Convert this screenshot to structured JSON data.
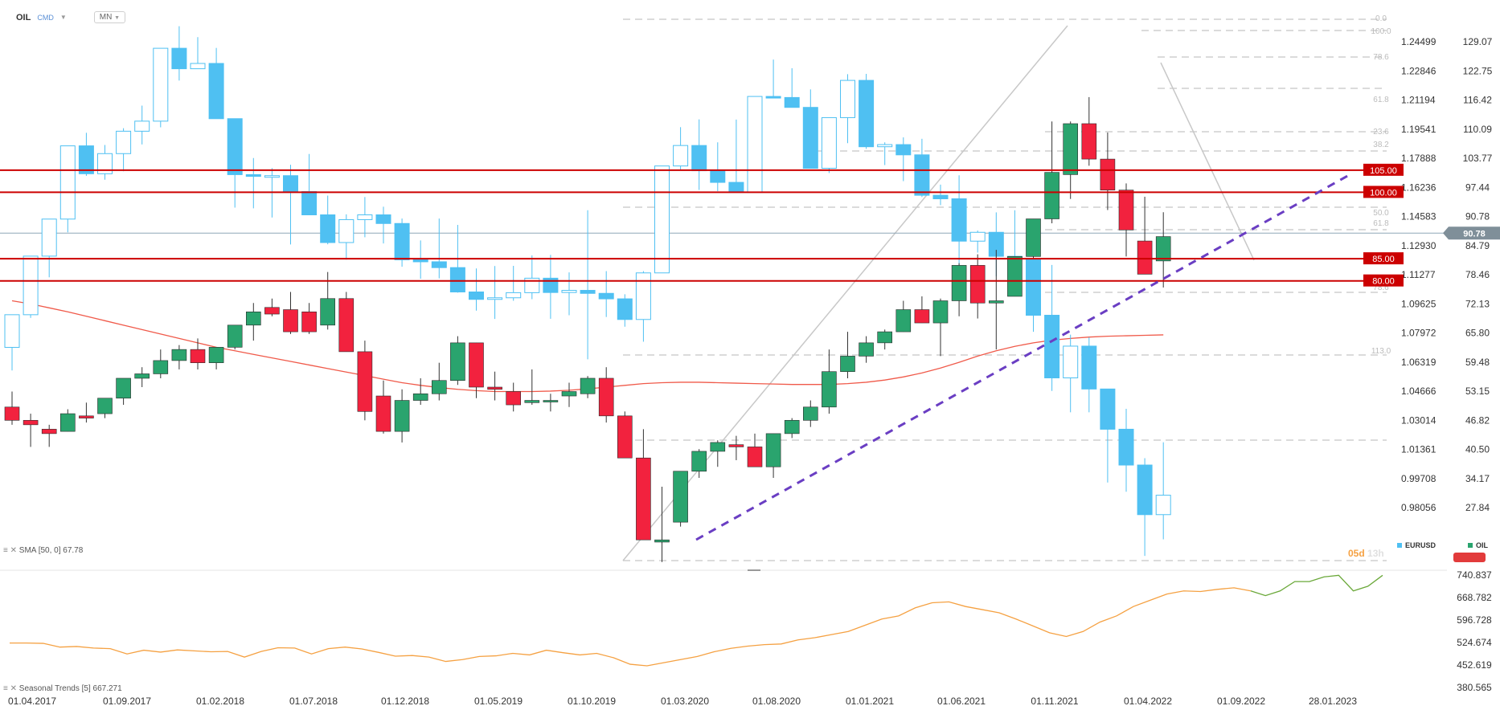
{
  "header": {
    "symbol": "OIL",
    "group": "CMD",
    "timeframe": "MN"
  },
  "indicators": {
    "sma_label": "SMA [50, 0]  67.78",
    "seasonal_label": "Seasonal  Trends [5]  667.271"
  },
  "legend": {
    "eurusd": "EURUSD",
    "oil": "OIL"
  },
  "timer": {
    "left": "05d",
    "right": "13h"
  },
  "colors": {
    "up": "#2aa46e",
    "down": "#f2223e",
    "eur": "#4fc0f2",
    "hline": "#cc0000",
    "sma": "#f05a4a",
    "seasonal_orange": "#f5a142",
    "seasonal_green": "#6aa839",
    "trend": "#6a3ec3"
  },
  "chart_data": {
    "type": "candlestick",
    "x_labels": [
      "01.04.2017",
      "01.09.2017",
      "01.02.2018",
      "01.07.2018",
      "01.12.2018",
      "01.05.2019",
      "01.10.2019",
      "01.03.2020",
      "01.08.2020",
      "01.01.2021",
      "01.06.2021",
      "01.11.2021",
      "01.04.2022",
      "01.09.2022",
      "28.01.2023"
    ],
    "oil_axis": [
      "129.07",
      "122.75",
      "116.42",
      "110.09",
      "103.77",
      "97.44",
      "90.78",
      "84.79",
      "78.46",
      "72.13",
      "65.80",
      "59.48",
      "53.15",
      "46.82",
      "40.50",
      "34.17",
      "27.84"
    ],
    "eurusd_axis": [
      "1.24499",
      "1.22846",
      "1.21194",
      "1.19541",
      "1.17888",
      "1.16236",
      "1.14583",
      "1.12930",
      "1.11277",
      "1.09625",
      "1.07972",
      "1.06319",
      "1.04666",
      "1.03014",
      "1.01361",
      "0.99708",
      "0.98056"
    ],
    "oil_range": [
      17.0,
      134.0
    ],
    "current_price": "90.78",
    "horizontal_levels": [
      {
        "label": "105.00",
        "value": 105.0
      },
      {
        "label": "100.00",
        "value": 100.0
      },
      {
        "label": "85.00",
        "value": 85.0
      },
      {
        "label": "80.00",
        "value": 80.0
      }
    ],
    "fib_labels": [
      "0.0",
      "100.0",
      "78.6",
      "61.8",
      "23.6",
      "38.2",
      "50.0",
      "61.8",
      "78.6",
      "113.0"
    ],
    "oil_ohlc": [
      [
        51.5,
        55.0,
        47.5,
        48.5
      ],
      [
        48.5,
        50.0,
        42.5,
        47.5
      ],
      [
        46.5,
        47.5,
        42.5,
        45.5
      ],
      [
        46.0,
        51.0,
        46.0,
        50.0
      ],
      [
        49.5,
        52.5,
        48.0,
        49.0
      ],
      [
        50.0,
        53.5,
        49.0,
        53.5
      ],
      [
        53.5,
        58.0,
        52.0,
        58.0
      ],
      [
        58.0,
        60.5,
        56.0,
        59.0
      ],
      [
        59.0,
        64.5,
        58.0,
        62.0
      ],
      [
        62.0,
        65.5,
        60.0,
        64.5
      ],
      [
        64.5,
        67.0,
        60.0,
        61.5
      ],
      [
        61.5,
        65.0,
        60.0,
        65.0
      ],
      [
        65.0,
        70.0,
        64.5,
        70.0
      ],
      [
        70.0,
        75.0,
        66.5,
        73.0
      ],
      [
        74.0,
        76.0,
        72.0,
        72.5
      ],
      [
        73.5,
        77.5,
        68.0,
        68.5
      ],
      [
        73.0,
        75.0,
        68.0,
        68.5
      ],
      [
        70.0,
        82.0,
        69.0,
        76.0
      ],
      [
        76.0,
        77.5,
        64.0,
        64.0
      ],
      [
        64.0,
        66.5,
        48.5,
        50.5
      ],
      [
        54.0,
        57.5,
        45.5,
        46.0
      ],
      [
        46.0,
        55.5,
        43.5,
        53.0
      ],
      [
        53.0,
        58.0,
        52.0,
        54.5
      ],
      [
        54.5,
        61.5,
        53.0,
        57.5
      ],
      [
        57.5,
        67.5,
        56.5,
        66.0
      ],
      [
        66.0,
        66.0,
        53.5,
        56.0
      ],
      [
        56.0,
        59.5,
        53.0,
        55.5
      ],
      [
        55.0,
        57.0,
        50.5,
        52.0
      ],
      [
        52.5,
        60.0,
        52.0,
        53.0
      ],
      [
        53.0,
        54.5,
        50.5,
        53.0
      ],
      [
        54.0,
        57.0,
        51.5,
        55.0
      ],
      [
        54.5,
        58.5,
        53.5,
        58.0
      ],
      [
        58.0,
        60.5,
        48.0,
        49.5
      ],
      [
        49.5,
        50.5,
        44.0,
        40.0
      ],
      [
        40.0,
        46.5,
        22.0,
        21.5
      ],
      [
        21.0,
        33.5,
        16.5,
        21.5
      ],
      [
        25.5,
        36.5,
        24.5,
        37.0
      ],
      [
        37.0,
        42.0,
        35.5,
        41.5
      ],
      [
        41.5,
        44.0,
        38.0,
        43.5
      ],
      [
        43.0,
        45.0,
        39.5,
        42.5
      ],
      [
        42.5,
        45.5,
        39.0,
        38.0
      ],
      [
        38.0,
        45.0,
        35.5,
        45.5
      ],
      [
        45.5,
        49.0,
        44.5,
        48.5
      ],
      [
        48.5,
        53.0,
        47.0,
        51.5
      ],
      [
        51.5,
        64.5,
        50.0,
        59.5
      ],
      [
        59.5,
        68.5,
        58.0,
        63.0
      ],
      [
        63.0,
        67.5,
        61.5,
        66.0
      ],
      [
        66.0,
        69.0,
        64.5,
        68.5
      ],
      [
        68.5,
        75.5,
        68.5,
        73.5
      ],
      [
        73.5,
        76.5,
        73.0,
        70.5
      ],
      [
        70.5,
        76.0,
        63.0,
        75.5
      ],
      [
        75.5,
        84.0,
        72.0,
        83.5
      ],
      [
        83.5,
        86.0,
        71.5,
        75.0
      ],
      [
        75.0,
        87.0,
        64.5,
        75.5
      ],
      [
        76.5,
        84.0,
        76.5,
        85.5
      ],
      [
        85.5,
        94.0,
        85.0,
        94.0
      ],
      [
        94.0,
        116.0,
        93.0,
        104.5
      ],
      [
        104.0,
        116.0,
        98.5,
        115.5
      ],
      [
        115.5,
        121.5,
        106.0,
        107.5
      ],
      [
        107.5,
        113.5,
        96.0,
        100.5
      ],
      [
        100.5,
        102.0,
        85.5,
        91.5
      ],
      [
        89.0,
        99.0,
        81.5,
        81.5
      ],
      [
        84.5,
        95.5,
        78.5,
        90.0
      ]
    ],
    "eurusd_candles": [
      [
        1.0718,
        1.0802,
        1.0587,
        1.0903
      ],
      [
        1.0903,
        1.1095,
        1.0885,
        1.1235
      ],
      [
        1.1235,
        1.1318,
        1.1115,
        1.1445
      ],
      [
        1.1445,
        1.1742,
        1.137,
        1.186
      ],
      [
        1.186,
        1.1934,
        1.169,
        1.1702
      ],
      [
        1.1702,
        1.1865,
        1.1668,
        1.1816
      ],
      [
        1.1816,
        1.196,
        1.1716,
        1.1943
      ],
      [
        1.1943,
        1.2088,
        1.1868,
        1.2
      ],
      [
        1.2,
        1.2335,
        1.1965,
        1.2413
      ],
      [
        1.2413,
        1.2538,
        1.223,
        1.2297
      ],
      [
        1.2297,
        1.2476,
        1.232,
        1.2327
      ],
      [
        1.2327,
        1.2415,
        1.2155,
        1.2014
      ],
      [
        1.2014,
        1.1926,
        1.151,
        1.1697
      ],
      [
        1.1697,
        1.1791,
        1.1506,
        1.1687
      ],
      [
        1.1687,
        1.1734,
        1.1454,
        1.1691
      ],
      [
        1.1691,
        1.1753,
        1.1301,
        1.1601
      ],
      [
        1.1601,
        1.1814,
        1.1486,
        1.1469
      ],
      [
        1.1469,
        1.1578,
        1.1302,
        1.1312
      ],
      [
        1.1312,
        1.1472,
        1.1215,
        1.1442
      ],
      [
        1.1442,
        1.157,
        1.1342,
        1.1469
      ],
      [
        1.1469,
        1.1515,
        1.1307,
        1.142
      ],
      [
        1.142,
        1.1448,
        1.1175,
        1.1214
      ],
      [
        1.1214,
        1.1324,
        1.1107,
        1.1203
      ],
      [
        1.1203,
        1.1448,
        1.1109,
        1.117
      ],
      [
        1.117,
        1.1412,
        1.1028,
        1.1032
      ],
      [
        1.1032,
        1.1165,
        1.0926,
        1.099
      ],
      [
        1.099,
        1.1179,
        1.0879,
        1.0999
      ],
      [
        1.0999,
        1.118,
        1.0982,
        1.1028
      ],
      [
        1.1028,
        1.1239,
        1.0991,
        1.111
      ],
      [
        1.111,
        1.1242,
        1.088,
        1.1029
      ],
      [
        1.1029,
        1.1143,
        1.09,
        1.1041
      ],
      [
        1.1041,
        1.1495,
        1.065,
        1.1024
      ],
      [
        1.1024,
        1.115,
        1.089,
        1.0993
      ],
      [
        1.0993,
        1.1019,
        1.0835,
        1.0876
      ],
      [
        1.0876,
        1.115,
        1.075,
        1.114
      ],
      [
        1.114,
        1.1235,
        1.1173,
        1.1746
      ],
      [
        1.1746,
        1.1966,
        1.172,
        1.1862
      ],
      [
        1.1862,
        1.201,
        1.161,
        1.1719
      ],
      [
        1.1719,
        1.188,
        1.1603,
        1.1653
      ],
      [
        1.1653,
        1.2009,
        1.1646,
        1.1596
      ],
      [
        1.1596,
        1.188,
        1.1625,
        1.214
      ],
      [
        1.214,
        1.2349,
        1.221,
        1.2134
      ],
      [
        1.2134,
        1.23,
        1.2105,
        1.2078
      ],
      [
        1.2078,
        1.218,
        1.1761,
        1.1733
      ],
      [
        1.1733,
        1.1964,
        1.1706,
        1.202
      ],
      [
        1.202,
        1.2266,
        1.1875,
        1.2231
      ],
      [
        1.2231,
        1.2268,
        1.1843,
        1.1855
      ],
      [
        1.1855,
        1.188,
        1.1751,
        1.1867
      ],
      [
        1.1867,
        1.1908,
        1.166,
        1.1809
      ],
      [
        1.1809,
        1.19,
        1.157,
        1.158
      ],
      [
        1.158,
        1.164,
        1.1524,
        1.156
      ],
      [
        1.156,
        1.1693,
        1.1185,
        1.132
      ],
      [
        1.132,
        1.138,
        1.1255,
        1.137
      ],
      [
        1.137,
        1.1483,
        1.1121,
        1.1234
      ],
      [
        1.1234,
        1.1495,
        1.1106,
        1.1221
      ],
      [
        1.1221,
        1.1186,
        1.0806,
        1.09
      ],
      [
        1.09,
        1.1185,
        1.0471,
        1.0545
      ],
      [
        1.0545,
        1.079,
        1.035,
        1.0725
      ],
      [
        1.0725,
        1.0775,
        1.035,
        1.0482
      ],
      [
        1.0482,
        1.0376,
        0.9952,
        1.0254
      ],
      [
        1.0254,
        1.037,
        0.99,
        1.0051
      ],
      [
        1.0051,
        1.009,
        0.9536,
        0.977
      ],
      [
        0.977,
        1.018,
        0.963,
        0.988
      ]
    ],
    "sma_50": [
      75.5,
      74.8,
      73.9,
      73.0,
      72.0,
      71.0,
      70.0,
      69.0,
      68.0,
      67.0,
      66.0,
      65.0,
      64.2,
      63.4,
      62.6,
      61.8,
      61.0,
      60.2,
      59.4,
      58.6,
      57.8,
      57.0,
      56.4,
      55.9,
      55.5,
      55.2,
      55.0,
      55.0,
      55.0,
      55.1,
      55.3,
      55.6,
      56.0,
      56.4,
      56.8,
      57.0,
      57.1,
      57.1,
      57.0,
      56.9,
      56.8,
      56.7,
      56.6,
      56.6,
      56.6,
      56.8,
      57.1,
      57.6,
      58.3,
      59.2,
      60.3,
      61.6,
      63.0,
      64.2,
      65.2,
      66.0,
      66.6,
      67.0,
      67.3,
      67.5,
      67.6,
      67.7,
      67.8
    ],
    "seasonal_range": [
      380.565,
      740.837
    ],
    "seasonal_axis": [
      "740.837",
      "668.782",
      "596.728",
      "524.674",
      "452.619",
      "380.565"
    ],
    "seasonal_orange": [
      523,
      523,
      522,
      510,
      512,
      507,
      505,
      488,
      500,
      494,
      501,
      498,
      495,
      496,
      478,
      496,
      508,
      507,
      488,
      505,
      510,
      504,
      493,
      481,
      483,
      478,
      464,
      470,
      480,
      482,
      490,
      485,
      500,
      492,
      485,
      490,
      476,
      455,
      450,
      460,
      470,
      480,
      495,
      506,
      513,
      518,
      520,
      533,
      540,
      550,
      560,
      580,
      600,
      610,
      636,
      652,
      655,
      640,
      630,
      620,
      600,
      578,
      556,
      544,
      560,
      590,
      610,
      640,
      660,
      680,
      690,
      688,
      695,
      700,
      690
    ],
    "seasonal_green": [
      690,
      675,
      690,
      720,
      720,
      735,
      740,
      690,
      705,
      740
    ]
  }
}
